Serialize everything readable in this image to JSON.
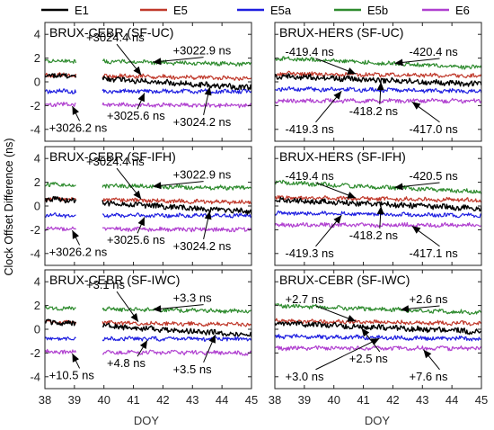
{
  "figure": {
    "ylabel": "Clock Offset Difference (ns)",
    "xlabel": "DOY",
    "legend": [
      {
        "name": "E1",
        "color": "#000000"
      },
      {
        "name": "E5",
        "color": "#c0392b"
      },
      {
        "name": "E5a",
        "color": "#1f1fe0"
      },
      {
        "name": "E5b",
        "color": "#2e8b2e"
      },
      {
        "name": "E6",
        "color": "#b040d0"
      }
    ],
    "xticks": [
      "38",
      "39",
      "40",
      "41",
      "42",
      "43",
      "44",
      "45"
    ],
    "yticks": [
      "4",
      "2",
      "0",
      "-2",
      "-4"
    ]
  },
  "chart_data": [
    {
      "type": "line",
      "title": "BRUX-CEBR (SF-UC)",
      "xlim": [
        38,
        45
      ],
      "ylim": [
        -5,
        5
      ],
      "data_gap": [
        39.05,
        39.95
      ],
      "series": [
        {
          "name": "E1",
          "start": 0.6,
          "end": -0.5
        },
        {
          "name": "E5",
          "start": 0.6,
          "end": 0.3
        },
        {
          "name": "E5a",
          "start": -0.8,
          "end": -0.8
        },
        {
          "name": "E5b",
          "start": 1.8,
          "end": 1.5
        },
        {
          "name": "E6",
          "start": -1.9,
          "end": -2.0
        }
      ],
      "annotations": [
        {
          "text": "+3024.4 ns",
          "series": "E5",
          "x": 41.3
        },
        {
          "text": "+3022.9 ns",
          "series": "E5b",
          "x": 41.6
        },
        {
          "text": "+3025.6 ns",
          "series": "E5a",
          "x": 41.4
        },
        {
          "text": "+3024.2 ns",
          "series": "E1",
          "x": 43.6
        },
        {
          "text": "+3026.2 ns",
          "series": "E6",
          "x": 38.9
        }
      ]
    },
    {
      "type": "line",
      "title": "BRUX-HERS (SF-UC)",
      "xlim": [
        38,
        45
      ],
      "ylim": [
        -5,
        5
      ],
      "series": [
        {
          "name": "E1",
          "start": 0.5,
          "end": -0.2
        },
        {
          "name": "E5",
          "start": 0.7,
          "end": 0.5
        },
        {
          "name": "E5a",
          "start": -0.6,
          "end": -0.8
        },
        {
          "name": "E5b",
          "start": 2.0,
          "end": 1.2
        },
        {
          "name": "E6",
          "start": -1.6,
          "end": -1.6
        }
      ],
      "annotations": [
        {
          "text": "-419.4 ns",
          "series": "E5",
          "x": 40.8
        },
        {
          "text": "-420.4 ns",
          "series": "E5b",
          "x": 42.0
        },
        {
          "text": "-419.3 ns",
          "series": "E5a",
          "x": 40.3
        },
        {
          "text": "-418.2 ns",
          "series": "E1",
          "x": 41.6
        },
        {
          "text": "-417.0 ns",
          "series": "E6",
          "x": 42.6
        }
      ]
    },
    {
      "type": "line",
      "title": "BRUX-CEBR (SF-IFH)",
      "xlim": [
        38,
        45
      ],
      "ylim": [
        -5,
        5
      ],
      "data_gap": [
        39.05,
        39.95
      ],
      "series": [
        {
          "name": "E1",
          "start": 0.6,
          "end": -0.5
        },
        {
          "name": "E5",
          "start": 0.6,
          "end": 0.3
        },
        {
          "name": "E5a",
          "start": -0.8,
          "end": -0.8
        },
        {
          "name": "E5b",
          "start": 1.8,
          "end": 1.5
        },
        {
          "name": "E6",
          "start": -1.9,
          "end": -2.0
        }
      ],
      "annotations": [
        {
          "text": "+3024.4 ns",
          "series": "E5",
          "x": 41.3
        },
        {
          "text": "+3022.9 ns",
          "series": "E5b",
          "x": 41.6
        },
        {
          "text": "+3025.6 ns",
          "series": "E5a",
          "x": 41.4
        },
        {
          "text": "+3024.2 ns",
          "series": "E1",
          "x": 43.6
        },
        {
          "text": "+3026.2 ns",
          "series": "E6",
          "x": 38.9
        }
      ]
    },
    {
      "type": "line",
      "title": "BRUX-HERS (SF-IFH)",
      "xlim": [
        38,
        45
      ],
      "ylim": [
        -5,
        5
      ],
      "series": [
        {
          "name": "E1",
          "start": 0.5,
          "end": -0.2
        },
        {
          "name": "E5",
          "start": 0.7,
          "end": 0.5
        },
        {
          "name": "E5a",
          "start": -0.6,
          "end": -0.8
        },
        {
          "name": "E5b",
          "start": 2.0,
          "end": 1.2
        },
        {
          "name": "E6",
          "start": -1.6,
          "end": -1.6
        }
      ],
      "annotations": [
        {
          "text": "-419.4 ns",
          "series": "E5",
          "x": 40.8
        },
        {
          "text": "-420.5 ns",
          "series": "E5b",
          "x": 42.0
        },
        {
          "text": "-419.3 ns",
          "series": "E5a",
          "x": 40.3
        },
        {
          "text": "-418.2 ns",
          "series": "E1",
          "x": 41.6
        },
        {
          "text": "-417.1 ns",
          "series": "E6",
          "x": 42.6
        }
      ]
    },
    {
      "type": "line",
      "title": "BRUX-CEBR (SF-IWC)",
      "xlim": [
        38,
        45
      ],
      "ylim": [
        -5,
        5
      ],
      "data_gap": [
        39.05,
        39.95
      ],
      "series": [
        {
          "name": "E1",
          "start": 0.6,
          "end": -0.5
        },
        {
          "name": "E5",
          "start": 0.6,
          "end": 0.4
        },
        {
          "name": "E5a",
          "start": -0.8,
          "end": -0.8
        },
        {
          "name": "E5b",
          "start": 1.8,
          "end": 1.5
        },
        {
          "name": "E6",
          "start": -1.9,
          "end": -2.0
        }
      ],
      "annotations": [
        {
          "text": "+3.1 ns",
          "series": "E5",
          "x": 41.2
        },
        {
          "text": "+3.3 ns",
          "series": "E5b",
          "x": 41.6
        },
        {
          "text": "+4.8 ns",
          "series": "E5a",
          "x": 41.5
        },
        {
          "text": "+3.5 ns",
          "series": "E1",
          "x": 43.8
        },
        {
          "text": "+10.5 ns",
          "series": "E6",
          "x": 38.9
        }
      ]
    },
    {
      "type": "line",
      "title": "BRUX-CEBR (SF-IWC)",
      "xlim": [
        38,
        45
      ],
      "ylim": [
        -5,
        5
      ],
      "series": [
        {
          "name": "E1",
          "start": 0.5,
          "end": -0.2
        },
        {
          "name": "E5",
          "start": 0.7,
          "end": 0.5
        },
        {
          "name": "E5a",
          "start": -0.6,
          "end": -0.8
        },
        {
          "name": "E5b",
          "start": 2.0,
          "end": 1.4
        },
        {
          "name": "E6",
          "start": -1.6,
          "end": -1.6
        }
      ],
      "annotations": [
        {
          "text": "+2.7 ns",
          "series": "E5",
          "x": 40.8
        },
        {
          "text": "+2.6 ns",
          "series": "E5b",
          "x": 42.2
        },
        {
          "text": "+3.0 ns",
          "series": "E5a",
          "x": 41.6
        },
        {
          "text": "+2.5 ns",
          "series": "E1",
          "x": 40.9
        },
        {
          "text": "+7.6 ns",
          "series": "E6",
          "x": 43.0
        }
      ]
    }
  ]
}
